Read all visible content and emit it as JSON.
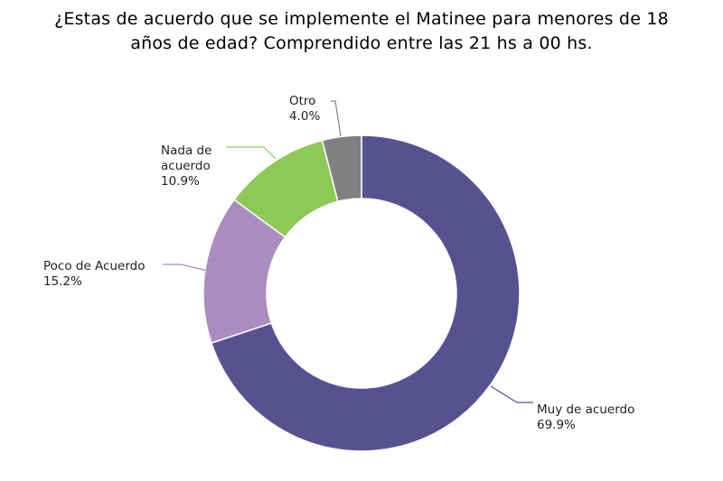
{
  "chart_data": {
    "type": "pie",
    "variant": "donut",
    "title": [
      "¿Estas de acuerdo que se implemente el Matinee para menores de 18",
      "años de edad? Comprendido entre las 21 hs a 00 hs."
    ],
    "slices": [
      {
        "label": [
          "Muy de acuerdo"
        ],
        "value": 69.9,
        "value_label": "69.9%",
        "color": "#57528f"
      },
      {
        "label": [
          "Poco de Acuerdo"
        ],
        "value": 15.2,
        "value_label": "15.2%",
        "color": "#ab8cbe"
      },
      {
        "label": [
          "Nada de",
          "acuerdo"
        ],
        "value": 10.9,
        "value_label": "10.9%",
        "color": "#8dc956"
      },
      {
        "label": [
          "Otro"
        ],
        "value": 4.0,
        "value_label": "4.0%",
        "color": "#808080"
      }
    ],
    "start_angle_deg": 0,
    "direction": "clockwise",
    "legend": "none",
    "labels": "outside-with-leader-lines"
  }
}
